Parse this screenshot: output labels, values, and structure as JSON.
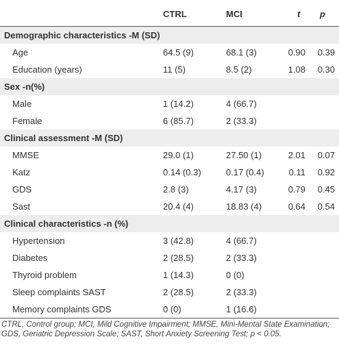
{
  "table": {
    "columns": [
      "CTRL",
      "MCI",
      "t",
      "p"
    ],
    "sections": [
      {
        "title": "Demographic characteristics -M (SD)",
        "rows": [
          [
            "Age",
            "64.5 (9)",
            "68.1 (3)",
            "0.90",
            "0.39"
          ],
          [
            "Education (years)",
            "11 (5)",
            "8.5 (2)",
            "1.08",
            "0.30"
          ]
        ]
      },
      {
        "title": "Sex -n(%)",
        "rows": [
          [
            "Male",
            "1 (14.2)",
            "4 (66.7)"
          ],
          [
            "Female",
            "6 (85.7)",
            "2 (33.3)"
          ]
        ]
      },
      {
        "title": "Clinical assessment -M (SD)",
        "rows": [
          [
            "MMSE",
            "29.0 (1)",
            "27.50 (1)",
            "2.01",
            "0.07"
          ],
          [
            "Katz",
            "0.14 (0.3)",
            "0.17 (0.4)",
            "0.11",
            "0.92"
          ],
          [
            "GDS",
            "2.8 (3)",
            "4.17 (3)",
            "0.79",
            "0.45"
          ],
          [
            "Sast",
            "20.4 (4)",
            "18.83 (4)",
            "0.64",
            "0.54"
          ]
        ]
      },
      {
        "title": "Clinical characteristics -n (%)",
        "rows": [
          [
            "Hypertension",
            "3 (42.8)",
            "4 (66.7)"
          ],
          [
            "Diabetes",
            "2 (28.5)",
            "2 (33.3)"
          ],
          [
            "Thyroid problem",
            "1 (14.3)",
            "0 (0)"
          ],
          [
            "Sleep complaints SAST",
            "2 (28.5)",
            "2 (33.3)"
          ],
          [
            "Memory complaints GDS",
            "0 (0)",
            "1 (16.6)"
          ]
        ]
      }
    ],
    "footnote": "CTRL, Control group; MCI, Mild Cognitive Impairment; MMSE, Mini-Mental State Examination; GDS, Geriatric Depression Scale; SAST, Short Anxiety Screening Test; p < 0.05."
  }
}
